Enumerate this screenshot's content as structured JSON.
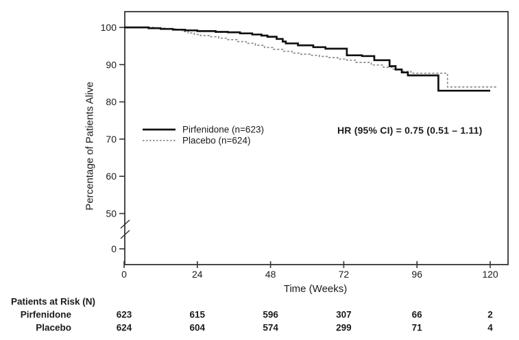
{
  "chart_data": {
    "type": "line",
    "subtype": "kaplan-meier-step-survival",
    "title": "",
    "xlabel": "Time (Weeks)",
    "ylabel": "Percentage of Patients Alive",
    "annotation": "HR (95% CI) = 0.75 (0.51 – 1.11)",
    "xlim": [
      0,
      126
    ],
    "xticks": [
      0,
      24,
      48,
      72,
      96,
      120
    ],
    "yticks": [
      100,
      90,
      80,
      70,
      60,
      50,
      0
    ],
    "y_axis_break": true,
    "grid": false,
    "legend_position": "inside-middle-left",
    "series": [
      {
        "name": "Pirfenidone (n=623)",
        "style": "solid",
        "color": "#111111",
        "points": [
          [
            0,
            100
          ],
          [
            8,
            99.8
          ],
          [
            12,
            99.6
          ],
          [
            16,
            99.4
          ],
          [
            20,
            99.2
          ],
          [
            24,
            99.0
          ],
          [
            30,
            98.8
          ],
          [
            34,
            98.7
          ],
          [
            38,
            98.4
          ],
          [
            42,
            98.1
          ],
          [
            45,
            97.8
          ],
          [
            47,
            97.5
          ],
          [
            50,
            96.9
          ],
          [
            52,
            96.2
          ],
          [
            53,
            95.7
          ],
          [
            57,
            95.2
          ],
          [
            62,
            94.7
          ],
          [
            66,
            94.3
          ],
          [
            73,
            92.5
          ],
          [
            78,
            92.3
          ],
          [
            82,
            91.2
          ],
          [
            87,
            89.6
          ],
          [
            89,
            88.7
          ],
          [
            91,
            87.9
          ],
          [
            93,
            87.1
          ],
          [
            103,
            83.0
          ],
          [
            120,
            83.0
          ]
        ]
      },
      {
        "name": "Placebo (n=624)",
        "style": "dashed",
        "color": "#8c8c8c",
        "points": [
          [
            0,
            100
          ],
          [
            10,
            99.8
          ],
          [
            14,
            99.6
          ],
          [
            17,
            99.3
          ],
          [
            19,
            98.9
          ],
          [
            21,
            98.5
          ],
          [
            23,
            98.1
          ],
          [
            25,
            97.8
          ],
          [
            28,
            97.5
          ],
          [
            31,
            97.1
          ],
          [
            34,
            96.7
          ],
          [
            37,
            96.2
          ],
          [
            40,
            95.7
          ],
          [
            43,
            95.2
          ],
          [
            46,
            94.6
          ],
          [
            49,
            94.1
          ],
          [
            52,
            93.6
          ],
          [
            55,
            93.1
          ],
          [
            58,
            92.8
          ],
          [
            61,
            92.5
          ],
          [
            64,
            92.2
          ],
          [
            67,
            91.9
          ],
          [
            70,
            91.5
          ],
          [
            73,
            91.2
          ],
          [
            76,
            90.6
          ],
          [
            81,
            89.9
          ],
          [
            85,
            89.3
          ],
          [
            88,
            88.8
          ],
          [
            91,
            88.2
          ],
          [
            94,
            87.7
          ],
          [
            106,
            84.0
          ],
          [
            122,
            84.0
          ]
        ]
      }
    ]
  },
  "risk_table": {
    "header": "Patients at Risk (N)",
    "weeks": [
      0,
      24,
      48,
      72,
      96,
      120
    ],
    "rows": [
      {
        "label": "Pirfenidone",
        "counts": [
          623,
          615,
          596,
          307,
          66,
          2
        ]
      },
      {
        "label": "Placebo",
        "counts": [
          624,
          604,
          574,
          299,
          71,
          4
        ]
      }
    ]
  },
  "colors": {
    "background": "#ffffff",
    "plot_border": "#333333",
    "text": "#1a1a1a",
    "solid_curve": "#111111",
    "dashed_curve": "#8c8c8c"
  }
}
